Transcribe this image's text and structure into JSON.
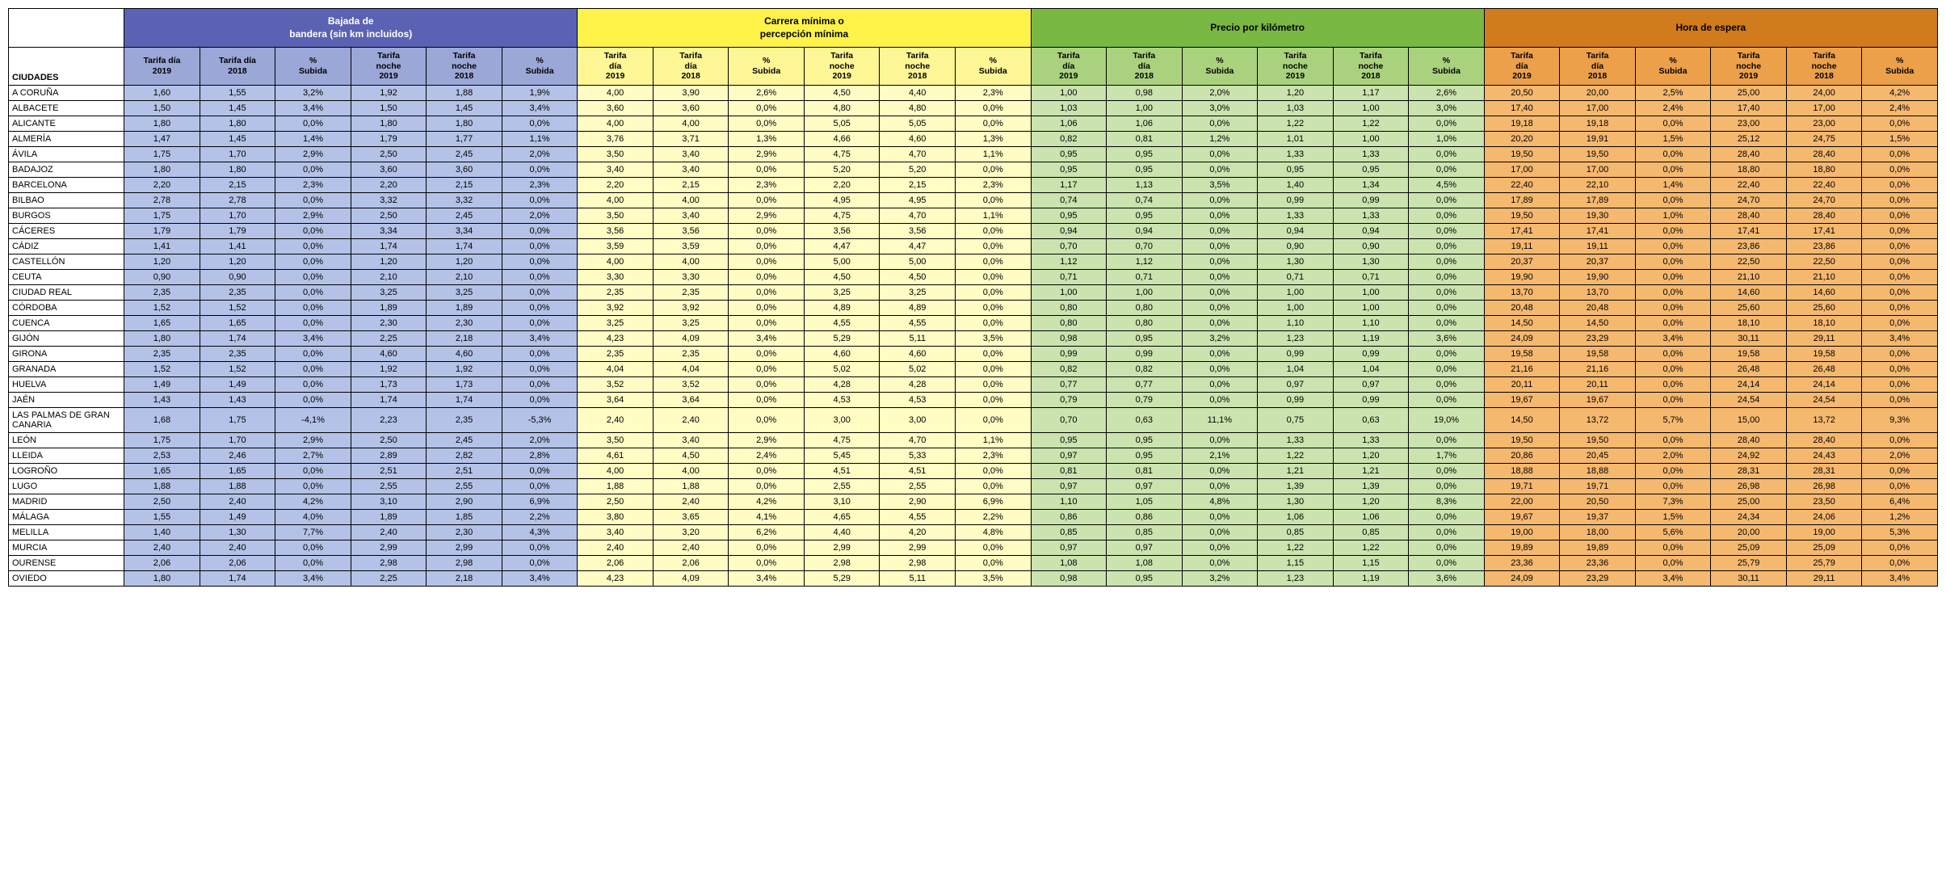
{
  "headers": {
    "city": "CIUDADES",
    "groups": [
      "Bajada de\nbandera (sin km incluidos)",
      "Carrera mínima o\npercepción mínima",
      "Precio por kilómetro",
      "Hora de espera"
    ],
    "subs": [
      "Tarifa día 2019",
      "Tarifa día 2018",
      "% Subida",
      "Tarifa noche 2019",
      "Tarifa noche 2018",
      "% Subida"
    ]
  },
  "colors": {
    "g1_header": "#5b62b4",
    "g1_sub": "#9ba7d7",
    "g1_cell": "#b4c2e7",
    "g2_header": "#fff34a",
    "g2_sub": "#fff695",
    "g2_cell": "#fffcc4",
    "g3_header": "#79b843",
    "g3_sub": "#aad27e",
    "g3_cell": "#cbe3ae",
    "g4_header": "#d07b1c",
    "g4_sub": "#eca04a",
    "g4_cell": "#f5b86f"
  },
  "rows": [
    {
      "city": "A CORUÑA",
      "v": [
        "1,60",
        "1,55",
        "3,2%",
        "1,92",
        "1,88",
        "1,9%",
        "4,00",
        "3,90",
        "2,6%",
        "4,50",
        "4,40",
        "2,3%",
        "1,00",
        "0,98",
        "2,0%",
        "1,20",
        "1,17",
        "2,6%",
        "20,50",
        "20,00",
        "2,5%",
        "25,00",
        "24,00",
        "4,2%"
      ]
    },
    {
      "city": "ALBACETE",
      "v": [
        "1,50",
        "1,45",
        "3,4%",
        "1,50",
        "1,45",
        "3,4%",
        "3,60",
        "3,60",
        "0,0%",
        "4,80",
        "4,80",
        "0,0%",
        "1,03",
        "1,00",
        "3,0%",
        "1,03",
        "1,00",
        "3,0%",
        "17,40",
        "17,00",
        "2,4%",
        "17,40",
        "17,00",
        "2,4%"
      ]
    },
    {
      "city": "ALICANTE",
      "v": [
        "1,80",
        "1,80",
        "0,0%",
        "1,80",
        "1,80",
        "0,0%",
        "4,00",
        "4,00",
        "0,0%",
        "5,05",
        "5,05",
        "0,0%",
        "1,06",
        "1,06",
        "0,0%",
        "1,22",
        "1,22",
        "0,0%",
        "19,18",
        "19,18",
        "0,0%",
        "23,00",
        "23,00",
        "0,0%"
      ]
    },
    {
      "city": "ALMERÍA",
      "v": [
        "1,47",
        "1,45",
        "1,4%",
        "1,79",
        "1,77",
        "1,1%",
        "3,76",
        "3,71",
        "1,3%",
        "4,66",
        "4,60",
        "1,3%",
        "0,82",
        "0,81",
        "1,2%",
        "1,01",
        "1,00",
        "1,0%",
        "20,20",
        "19,91",
        "1,5%",
        "25,12",
        "24,75",
        "1,5%"
      ]
    },
    {
      "city": "ÁVILA",
      "v": [
        "1,75",
        "1,70",
        "2,9%",
        "2,50",
        "2,45",
        "2,0%",
        "3,50",
        "3,40",
        "2,9%",
        "4,75",
        "4,70",
        "1,1%",
        "0,95",
        "0,95",
        "0,0%",
        "1,33",
        "1,33",
        "0,0%",
        "19,50",
        "19,50",
        "0,0%",
        "28,40",
        "28,40",
        "0,0%"
      ]
    },
    {
      "city": "BADAJOZ",
      "v": [
        "1,80",
        "1,80",
        "0,0%",
        "3,60",
        "3,60",
        "0,0%",
        "3,40",
        "3,40",
        "0,0%",
        "5,20",
        "5,20",
        "0,0%",
        "0,95",
        "0,95",
        "0,0%",
        "0,95",
        "0,95",
        "0,0%",
        "17,00",
        "17,00",
        "0,0%",
        "18,80",
        "18,80",
        "0,0%"
      ]
    },
    {
      "city": "BARCELONA",
      "v": [
        "2,20",
        "2,15",
        "2,3%",
        "2,20",
        "2,15",
        "2,3%",
        "2,20",
        "2,15",
        "2,3%",
        "2,20",
        "2,15",
        "2,3%",
        "1,17",
        "1,13",
        "3,5%",
        "1,40",
        "1,34",
        "4,5%",
        "22,40",
        "22,10",
        "1,4%",
        "22,40",
        "22,40",
        "0,0%"
      ]
    },
    {
      "city": "BILBAO",
      "v": [
        "2,78",
        "2,78",
        "0,0%",
        "3,32",
        "3,32",
        "0,0%",
        "4,00",
        "4,00",
        "0,0%",
        "4,95",
        "4,95",
        "0,0%",
        "0,74",
        "0,74",
        "0,0%",
        "0,99",
        "0,99",
        "0,0%",
        "17,89",
        "17,89",
        "0,0%",
        "24,70",
        "24,70",
        "0,0%"
      ]
    },
    {
      "city": "BURGOS",
      "v": [
        "1,75",
        "1,70",
        "2,9%",
        "2,50",
        "2,45",
        "2,0%",
        "3,50",
        "3,40",
        "2,9%",
        "4,75",
        "4,70",
        "1,1%",
        "0,95",
        "0,95",
        "0,0%",
        "1,33",
        "1,33",
        "0,0%",
        "19,50",
        "19,30",
        "1,0%",
        "28,40",
        "28,40",
        "0,0%"
      ]
    },
    {
      "city": "CÁCERES",
      "v": [
        "1,79",
        "1,79",
        "0,0%",
        "3,34",
        "3,34",
        "0,0%",
        "3,56",
        "3,56",
        "0,0%",
        "3,56",
        "3,56",
        "0,0%",
        "0,94",
        "0,94",
        "0,0%",
        "0,94",
        "0,94",
        "0,0%",
        "17,41",
        "17,41",
        "0,0%",
        "17,41",
        "17,41",
        "0,0%"
      ]
    },
    {
      "city": "CÁDIZ",
      "v": [
        "1,41",
        "1,41",
        "0,0%",
        "1,74",
        "1,74",
        "0,0%",
        "3,59",
        "3,59",
        "0,0%",
        "4,47",
        "4,47",
        "0,0%",
        "0,70",
        "0,70",
        "0,0%",
        "0,90",
        "0,90",
        "0,0%",
        "19,11",
        "19,11",
        "0,0%",
        "23,86",
        "23,86",
        "0,0%"
      ]
    },
    {
      "city": "CASTELLÓN",
      "v": [
        "1,20",
        "1,20",
        "0,0%",
        "1,20",
        "1,20",
        "0,0%",
        "4,00",
        "4,00",
        "0,0%",
        "5,00",
        "5,00",
        "0,0%",
        "1,12",
        "1,12",
        "0,0%",
        "1,30",
        "1,30",
        "0,0%",
        "20,37",
        "20,37",
        "0,0%",
        "22,50",
        "22,50",
        "0,0%"
      ]
    },
    {
      "city": "CEUTA",
      "v": [
        "0,90",
        "0,90",
        "0,0%",
        "2,10",
        "2,10",
        "0,0%",
        "3,30",
        "3,30",
        "0,0%",
        "4,50",
        "4,50",
        "0,0%",
        "0,71",
        "0,71",
        "0,0%",
        "0,71",
        "0,71",
        "0,0%",
        "19,90",
        "19,90",
        "0,0%",
        "21,10",
        "21,10",
        "0,0%"
      ]
    },
    {
      "city": "CIUDAD REAL",
      "v": [
        "2,35",
        "2,35",
        "0,0%",
        "3,25",
        "3,25",
        "0,0%",
        "2,35",
        "2,35",
        "0,0%",
        "3,25",
        "3,25",
        "0,0%",
        "1,00",
        "1,00",
        "0,0%",
        "1,00",
        "1,00",
        "0,0%",
        "13,70",
        "13,70",
        "0,0%",
        "14,60",
        "14,60",
        "0,0%"
      ]
    },
    {
      "city": "CÓRDOBA",
      "v": [
        "1,52",
        "1,52",
        "0,0%",
        "1,89",
        "1,89",
        "0,0%",
        "3,92",
        "3,92",
        "0,0%",
        "4,89",
        "4,89",
        "0,0%",
        "0,80",
        "0,80",
        "0,0%",
        "1,00",
        "1,00",
        "0,0%",
        "20,48",
        "20,48",
        "0,0%",
        "25,60",
        "25,60",
        "0,0%"
      ]
    },
    {
      "city": "CUENCA",
      "v": [
        "1,65",
        "1,65",
        "0,0%",
        "2,30",
        "2,30",
        "0,0%",
        "3,25",
        "3,25",
        "0,0%",
        "4,55",
        "4,55",
        "0,0%",
        "0,80",
        "0,80",
        "0,0%",
        "1,10",
        "1,10",
        "0,0%",
        "14,50",
        "14,50",
        "0,0%",
        "18,10",
        "18,10",
        "0,0%"
      ]
    },
    {
      "city": "GIJÓN",
      "v": [
        "1,80",
        "1,74",
        "3,4%",
        "2,25",
        "2,18",
        "3,4%",
        "4,23",
        "4,09",
        "3,4%",
        "5,29",
        "5,11",
        "3,5%",
        "0,98",
        "0,95",
        "3,2%",
        "1,23",
        "1,19",
        "3,6%",
        "24,09",
        "23,29",
        "3,4%",
        "30,11",
        "29,11",
        "3,4%"
      ]
    },
    {
      "city": "GIRONA",
      "v": [
        "2,35",
        "2,35",
        "0,0%",
        "4,60",
        "4,60",
        "0,0%",
        "2,35",
        "2,35",
        "0,0%",
        "4,60",
        "4,60",
        "0,0%",
        "0,99",
        "0,99",
        "0,0%",
        "0,99",
        "0,99",
        "0,0%",
        "19,58",
        "19,58",
        "0,0%",
        "19,58",
        "19,58",
        "0,0%"
      ]
    },
    {
      "city": "GRANADA",
      "v": [
        "1,52",
        "1,52",
        "0,0%",
        "1,92",
        "1,92",
        "0,0%",
        "4,04",
        "4,04",
        "0,0%",
        "5,02",
        "5,02",
        "0,0%",
        "0,82",
        "0,82",
        "0,0%",
        "1,04",
        "1,04",
        "0,0%",
        "21,16",
        "21,16",
        "0,0%",
        "26,48",
        "26,48",
        "0,0%"
      ]
    },
    {
      "city": "HUELVA",
      "v": [
        "1,49",
        "1,49",
        "0,0%",
        "1,73",
        "1,73",
        "0,0%",
        "3,52",
        "3,52",
        "0,0%",
        "4,28",
        "4,28",
        "0,0%",
        "0,77",
        "0,77",
        "0,0%",
        "0,97",
        "0,97",
        "0,0%",
        "20,11",
        "20,11",
        "0,0%",
        "24,14",
        "24,14",
        "0,0%"
      ]
    },
    {
      "city": "JAÉN",
      "v": [
        "1,43",
        "1,43",
        "0,0%",
        "1,74",
        "1,74",
        "0,0%",
        "3,64",
        "3,64",
        "0,0%",
        "4,53",
        "4,53",
        "0,0%",
        "0,79",
        "0,79",
        "0,0%",
        "0,99",
        "0,99",
        "0,0%",
        "19,67",
        "19,67",
        "0,0%",
        "24,54",
        "24,54",
        "0,0%"
      ]
    },
    {
      "city": "LAS PALMAS DE GRAN CANARIA",
      "v": [
        "1,68",
        "1,75",
        "-4,1%",
        "2,23",
        "2,35",
        "-5,3%",
        "2,40",
        "2,40",
        "0,0%",
        "3,00",
        "3,00",
        "0,0%",
        "0,70",
        "0,63",
        "11,1%",
        "0,75",
        "0,63",
        "19,0%",
        "14,50",
        "13,72",
        "5,7%",
        "15,00",
        "13,72",
        "9,3%"
      ]
    },
    {
      "city": "LEÓN",
      "v": [
        "1,75",
        "1,70",
        "2,9%",
        "2,50",
        "2,45",
        "2,0%",
        "3,50",
        "3,40",
        "2,9%",
        "4,75",
        "4,70",
        "1,1%",
        "0,95",
        "0,95",
        "0,0%",
        "1,33",
        "1,33",
        "0,0%",
        "19,50",
        "19,50",
        "0,0%",
        "28,40",
        "28,40",
        "0,0%"
      ]
    },
    {
      "city": "LLEIDA",
      "v": [
        "2,53",
        "2,46",
        "2,7%",
        "2,89",
        "2,82",
        "2,8%",
        "4,61",
        "4,50",
        "2,4%",
        "5,45",
        "5,33",
        "2,3%",
        "0,97",
        "0,95",
        "2,1%",
        "1,22",
        "1,20",
        "1,7%",
        "20,86",
        "20,45",
        "2,0%",
        "24,92",
        "24,43",
        "2,0%"
      ]
    },
    {
      "city": "LOGROÑO",
      "v": [
        "1,65",
        "1,65",
        "0,0%",
        "2,51",
        "2,51",
        "0,0%",
        "4,00",
        "4,00",
        "0,0%",
        "4,51",
        "4,51",
        "0,0%",
        "0,81",
        "0,81",
        "0,0%",
        "1,21",
        "1,21",
        "0,0%",
        "18,88",
        "18,88",
        "0,0%",
        "28,31",
        "28,31",
        "0,0%"
      ]
    },
    {
      "city": "LUGO",
      "v": [
        "1,88",
        "1,88",
        "0,0%",
        "2,55",
        "2,55",
        "0,0%",
        "1,88",
        "1,88",
        "0,0%",
        "2,55",
        "2,55",
        "0,0%",
        "0,97",
        "0,97",
        "0,0%",
        "1,39",
        "1,39",
        "0,0%",
        "19,71",
        "19,71",
        "0,0%",
        "26,98",
        "26,98",
        "0,0%"
      ]
    },
    {
      "city": "MADRID",
      "v": [
        "2,50",
        "2,40",
        "4,2%",
        "3,10",
        "2,90",
        "6,9%",
        "2,50",
        "2,40",
        "4,2%",
        "3,10",
        "2,90",
        "6,9%",
        "1,10",
        "1,05",
        "4,8%",
        "1,30",
        "1,20",
        "8,3%",
        "22,00",
        "20,50",
        "7,3%",
        "25,00",
        "23,50",
        "6,4%"
      ]
    },
    {
      "city": "MÁLAGA",
      "v": [
        "1,55",
        "1,49",
        "4,0%",
        "1,89",
        "1,85",
        "2,2%",
        "3,80",
        "3,65",
        "4,1%",
        "4,65",
        "4,55",
        "2,2%",
        "0,86",
        "0,86",
        "0,0%",
        "1,06",
        "1,06",
        "0,0%",
        "19,67",
        "19,37",
        "1,5%",
        "24,34",
        "24,06",
        "1,2%"
      ]
    },
    {
      "city": "MELILLA",
      "v": [
        "1,40",
        "1,30",
        "7,7%",
        "2,40",
        "2,30",
        "4,3%",
        "3,40",
        "3,20",
        "6,2%",
        "4,40",
        "4,20",
        "4,8%",
        "0,85",
        "0,85",
        "0,0%",
        "0,85",
        "0,85",
        "0,0%",
        "19,00",
        "18,00",
        "5,6%",
        "20,00",
        "19,00",
        "5,3%"
      ]
    },
    {
      "city": "MURCIA",
      "v": [
        "2,40",
        "2,40",
        "0,0%",
        "2,99",
        "2,99",
        "0,0%",
        "2,40",
        "2,40",
        "0,0%",
        "2,99",
        "2,99",
        "0,0%",
        "0,97",
        "0,97",
        "0,0%",
        "1,22",
        "1,22",
        "0,0%",
        "19,89",
        "19,89",
        "0,0%",
        "25,09",
        "25,09",
        "0,0%"
      ]
    },
    {
      "city": "OURENSE",
      "v": [
        "2,06",
        "2,06",
        "0,0%",
        "2,98",
        "2,98",
        "0,0%",
        "2,06",
        "2,06",
        "0,0%",
        "2,98",
        "2,98",
        "0,0%",
        "1,08",
        "1,08",
        "0,0%",
        "1,15",
        "1,15",
        "0,0%",
        "23,36",
        "23,36",
        "0,0%",
        "25,79",
        "25,79",
        "0,0%"
      ]
    },
    {
      "city": "OVIEDO",
      "v": [
        "1,80",
        "1,74",
        "3,4%",
        "2,25",
        "2,18",
        "3,4%",
        "4,23",
        "4,09",
        "3,4%",
        "5,29",
        "5,11",
        "3,5%",
        "0,98",
        "0,95",
        "3,2%",
        "1,23",
        "1,19",
        "3,6%",
        "24,09",
        "23,29",
        "3,4%",
        "30,11",
        "29,11",
        "3,4%"
      ]
    }
  ]
}
